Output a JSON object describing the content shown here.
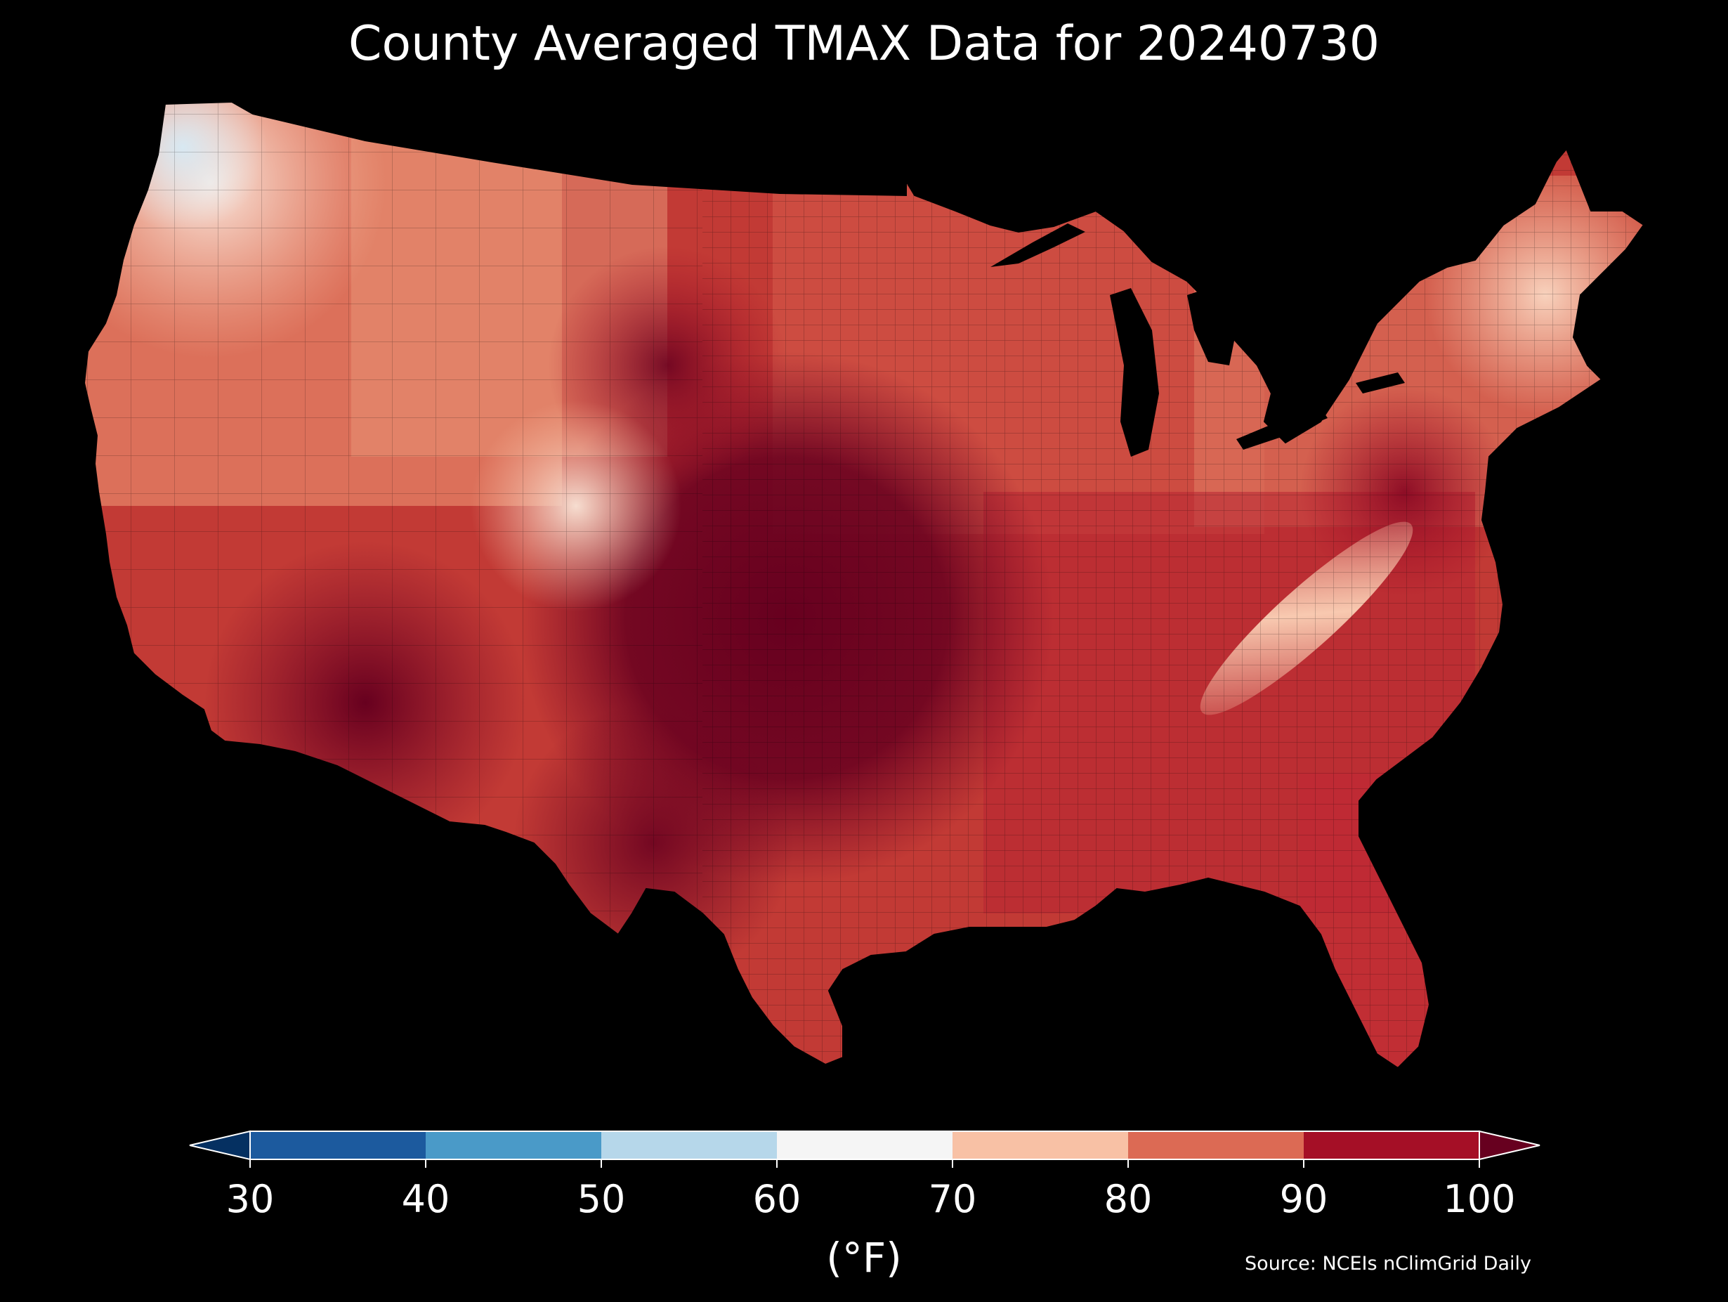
{
  "title": "County Averaged TMAX Data for 20240730",
  "colorbar": {
    "ticks": [
      "30",
      "40",
      "50",
      "60",
      "70",
      "80",
      "90",
      "100"
    ],
    "unit": "(°F)",
    "bins": [
      {
        "range": "<30",
        "color": "#053061"
      },
      {
        "range": "30-40",
        "color": "#1c5a9e"
      },
      {
        "range": "40-50",
        "color": "#4a9ac8"
      },
      {
        "range": "50-60",
        "color": "#b6d7ea"
      },
      {
        "range": "60-70",
        "color": "#f5f5f5"
      },
      {
        "range": "70-80",
        "color": "#f8c1a5"
      },
      {
        "range": "80-90",
        "color": "#dc6a54"
      },
      {
        "range": "90-100",
        "color": "#a50f26"
      },
      {
        "range": ">100",
        "color": "#67001f"
      }
    ]
  },
  "source": "Source: NCEIs nClimGrid Daily",
  "map": {
    "region": "Contiguous United States",
    "variable": "TMAX",
    "date": "20240730",
    "background": "#000000"
  }
}
